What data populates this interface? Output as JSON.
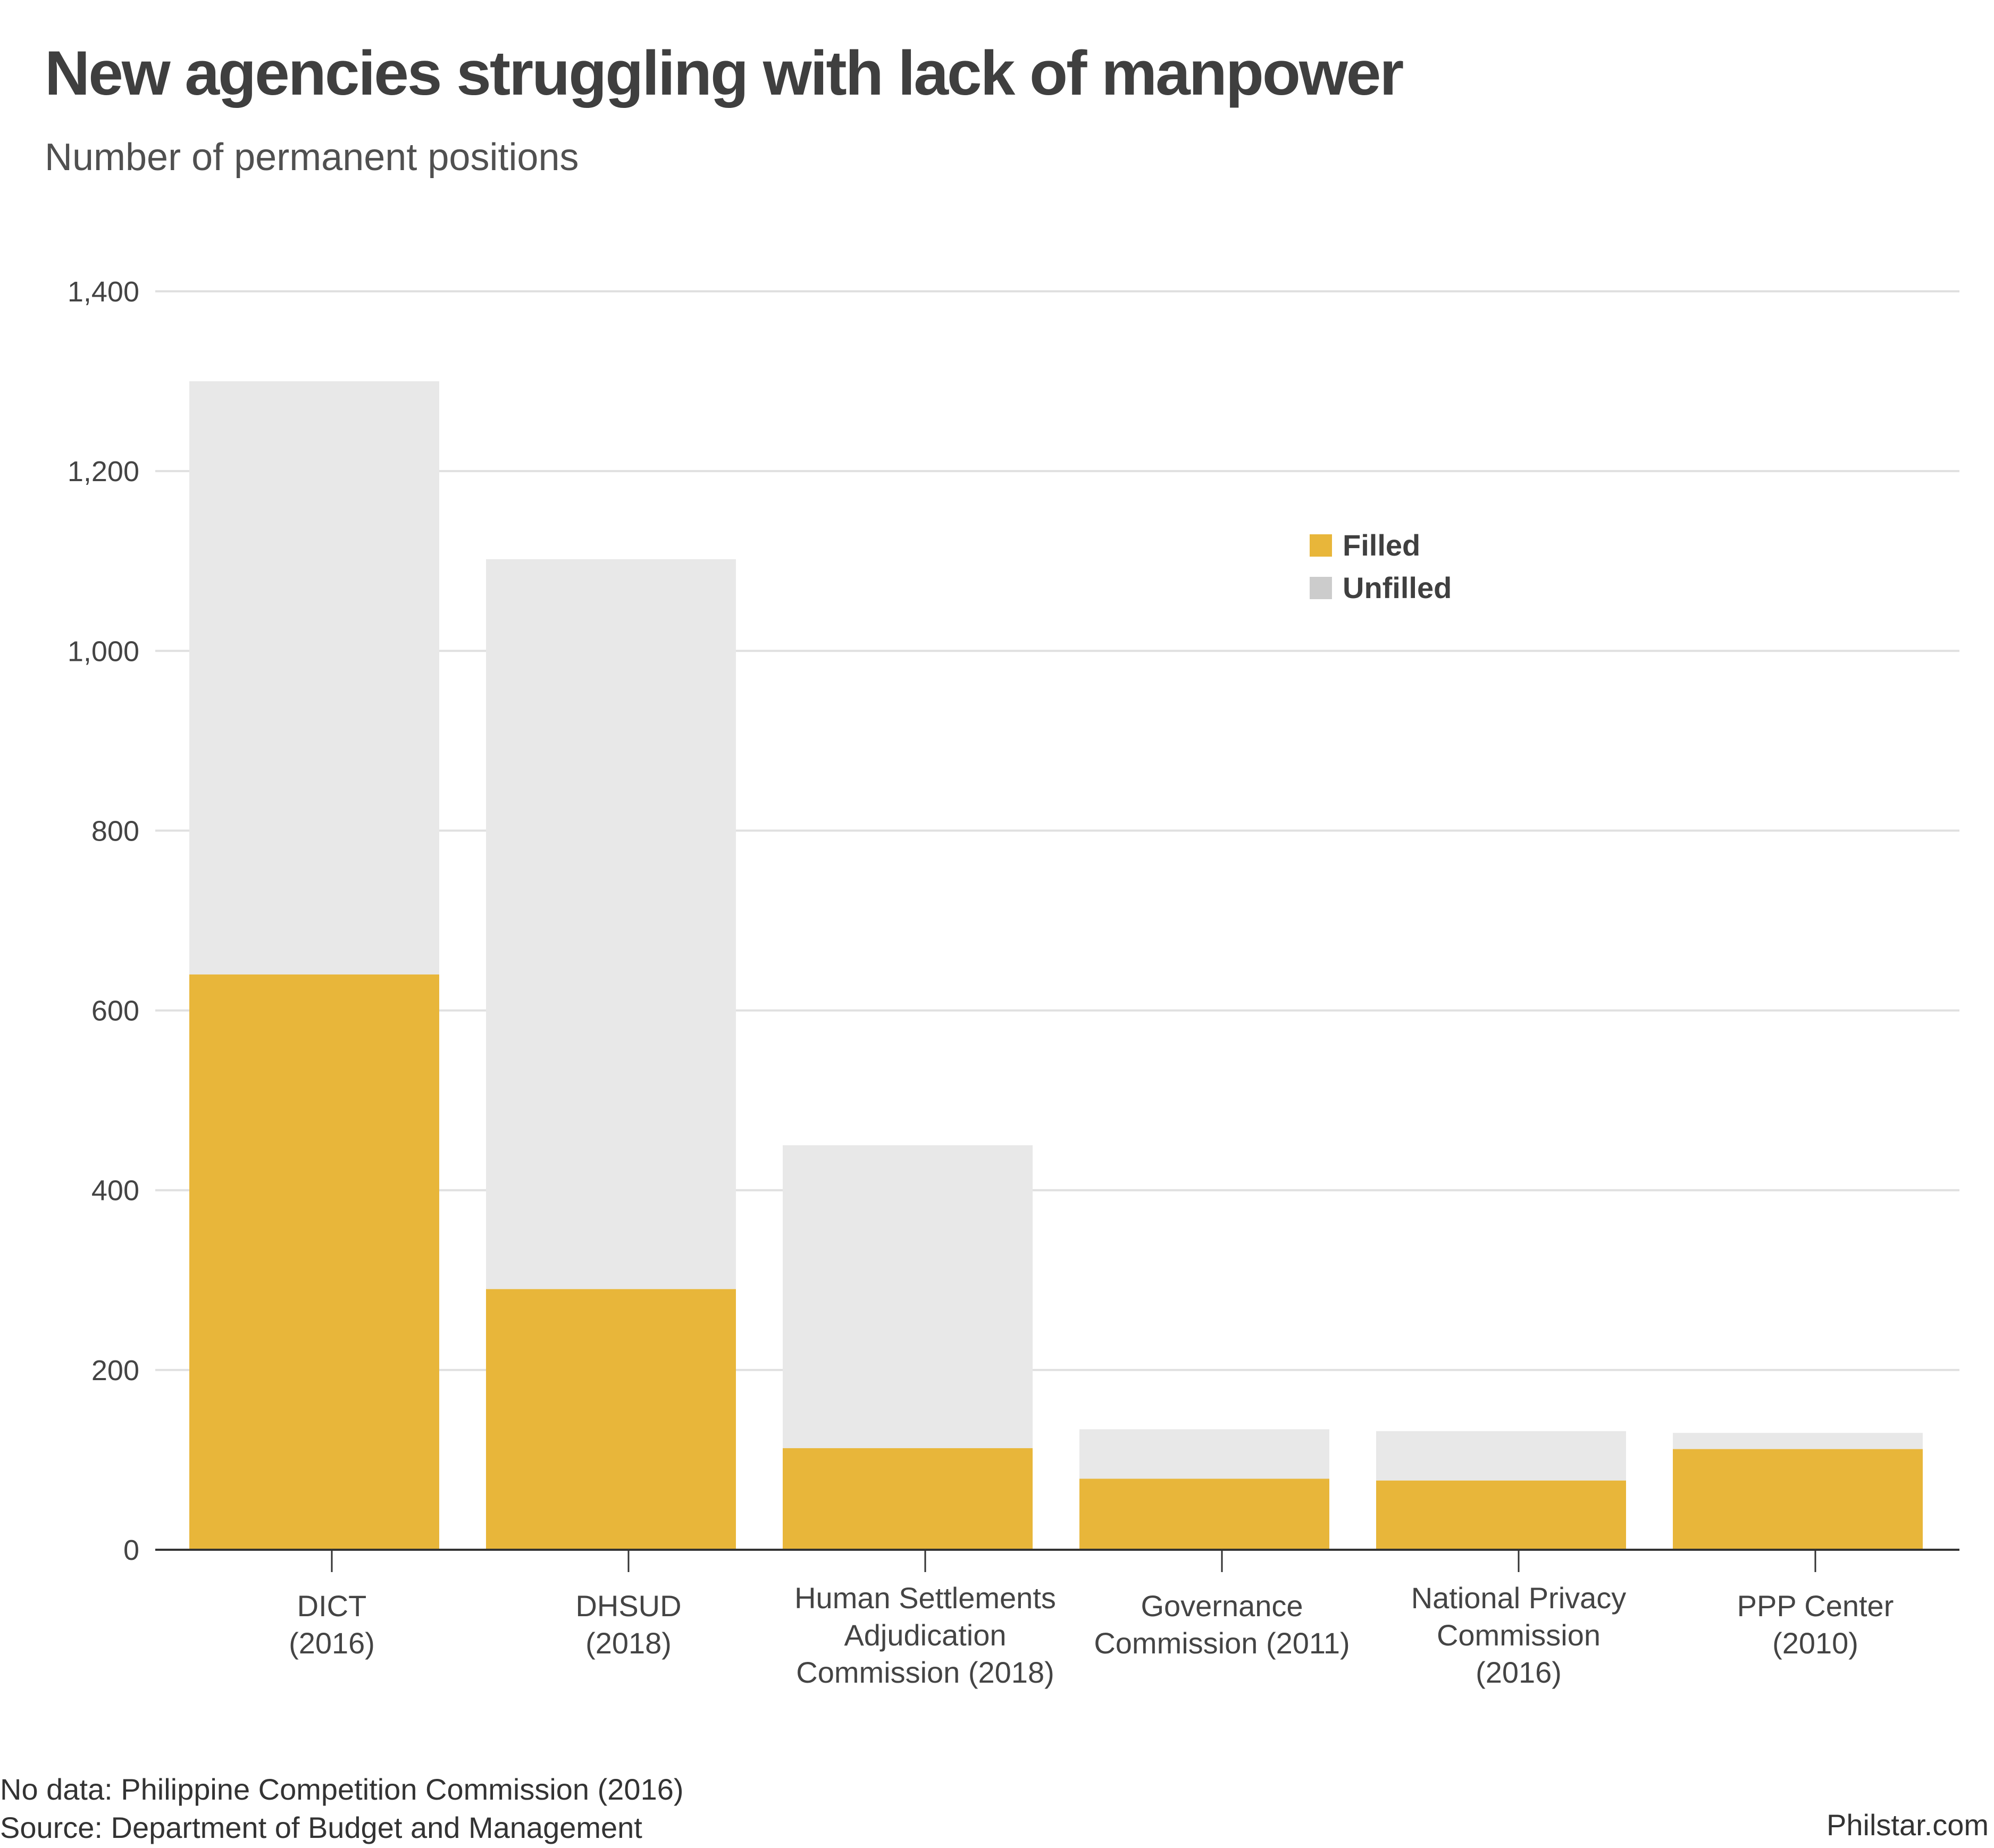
{
  "title": "New agencies struggling with lack of manpower",
  "subtitle": "Number of permanent positions",
  "footer": {
    "note": "No data: Philippine Competition Commission (2016)",
    "source": "Source: Department of Budget and Management",
    "credit": "Philstar.com"
  },
  "colors": {
    "filled": "#E8B63A",
    "unfilled": "#E8E8E8",
    "legend_unfilled": "#CCCCCC",
    "grid": "#E0E0E0",
    "axis": "#333333"
  },
  "chart_data": {
    "type": "bar",
    "stacked": true,
    "categories": [
      [
        "DICT",
        "(2016)"
      ],
      [
        "DHSUD",
        "(2018)"
      ],
      [
        "Human Settlements",
        "Adjudication",
        "Commission (2018)"
      ],
      [
        "Governance",
        "Commission (2011)"
      ],
      [
        "National Privacy",
        "Commission",
        "(2016)"
      ],
      [
        "PPP Center",
        "(2010)"
      ]
    ],
    "series": [
      {
        "name": "Filled",
        "values": [
          640,
          290,
          113,
          79,
          77,
          112
        ]
      },
      {
        "name": "Unfilled",
        "values": [
          660,
          812,
          337,
          55,
          55,
          18
        ]
      }
    ],
    "ylim": [
      0,
      1400
    ],
    "yticks": [
      0,
      200,
      400,
      600,
      800,
      1000,
      1200,
      1400
    ],
    "ytick_labels": [
      "0",
      "200",
      "400",
      "600",
      "800",
      "1,000",
      "1,200",
      "1,400"
    ],
    "grid": true,
    "legend_position": "top-right"
  }
}
